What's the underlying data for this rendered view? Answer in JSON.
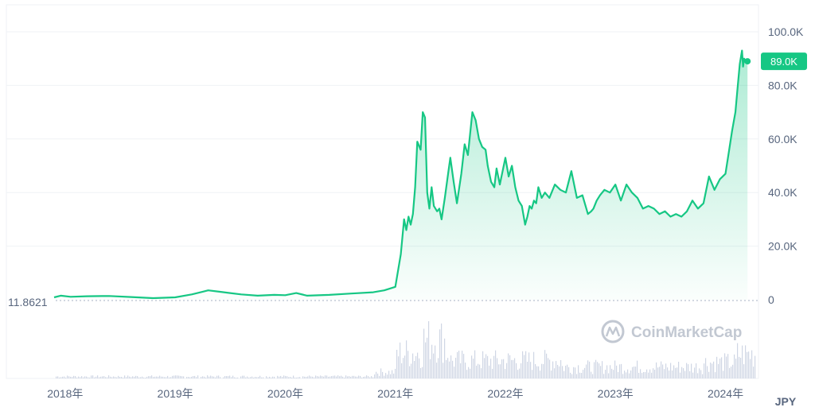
{
  "chart_data": {
    "type": "area",
    "currency": "JPY",
    "start_value_label": "11.8621",
    "current_value_label": "89.0K",
    "current_value": 89000,
    "watermark": "CoinMarketCap",
    "ylim": [
      0,
      100000
    ],
    "yticks": [
      {
        "value": 0,
        "label": "0"
      },
      {
        "value": 20000,
        "label": "20.0K"
      },
      {
        "value": 40000,
        "label": "40.0K"
      },
      {
        "value": 60000,
        "label": "60.0K"
      },
      {
        "value": 80000,
        "label": "80.0K"
      },
      {
        "value": 100000,
        "label": "100.0K"
      }
    ],
    "xlim": [
      2017.9,
      2024.3
    ],
    "xticks": [
      {
        "value": 2018.0,
        "label": "2018年"
      },
      {
        "value": 2019.0,
        "label": "2019年"
      },
      {
        "value": 2020.0,
        "label": "2020年"
      },
      {
        "value": 2021.0,
        "label": "2021年"
      },
      {
        "value": 2022.0,
        "label": "2022年"
      },
      {
        "value": 2023.0,
        "label": "2023年"
      },
      {
        "value": 2024.0,
        "label": "2024年"
      }
    ],
    "colors": {
      "line": "#16c784",
      "area_top": "#16c784",
      "volume": "#cfd6e4",
      "grid": "#eff2f5",
      "badge": "#16c784"
    },
    "series": [
      {
        "x": [
          2017.9,
          2017.96,
          2018.05,
          2018.2,
          2018.4,
          2018.6,
          2018.8,
          2019.0,
          2019.15,
          2019.3,
          2019.4,
          2019.5,
          2019.6,
          2019.75,
          2019.9,
          2020.0,
          2020.1,
          2020.2,
          2020.4,
          2020.6,
          2020.8,
          2020.9,
          2021.0,
          2021.05,
          2021.08,
          2021.1,
          2021.12,
          2021.14,
          2021.16,
          2021.18,
          2021.2,
          2021.23,
          2021.25,
          2021.27,
          2021.29,
          2021.31,
          2021.33,
          2021.35,
          2021.38,
          2021.4,
          2021.42,
          2021.45,
          2021.48,
          2021.5,
          2021.53,
          2021.56,
          2021.6,
          2021.63,
          2021.66,
          2021.7,
          2021.73,
          2021.76,
          2021.79,
          2021.82,
          2021.84,
          2021.87,
          2021.9,
          2021.92,
          2021.95,
          2021.97,
          2022.0,
          2022.03,
          2022.06,
          2022.09,
          2022.12,
          2022.15,
          2022.18,
          2022.2,
          2022.22,
          2022.24,
          2022.26,
          2022.28,
          2022.3,
          2022.33,
          2022.36,
          2022.4,
          2022.45,
          2022.5,
          2022.55,
          2022.6,
          2022.65,
          2022.7,
          2022.75,
          2022.78,
          2022.8,
          2022.83,
          2022.86,
          2022.9,
          2022.95,
          2023.0,
          2023.05,
          2023.1,
          2023.15,
          2023.2,
          2023.25,
          2023.3,
          2023.35,
          2023.4,
          2023.45,
          2023.5,
          2023.55,
          2023.6,
          2023.65,
          2023.7,
          2023.75,
          2023.8,
          2023.85,
          2023.9,
          2023.95,
          2024.0,
          2024.03,
          2024.06,
          2024.09,
          2024.11,
          2024.13,
          2024.15,
          2024.16,
          2024.17,
          2024.18,
          2024.19,
          2024.2
        ],
        "y": [
          900,
          1500,
          1100,
          1300,
          1400,
          1000,
          600,
          900,
          2000,
          3500,
          3000,
          2500,
          2000,
          1500,
          1800,
          1700,
          2500,
          1500,
          1800,
          2300,
          2800,
          3500,
          4800,
          17000,
          30000,
          26000,
          31000,
          28000,
          32000,
          42000,
          59000,
          56000,
          70000,
          68000,
          40000,
          34000,
          42000,
          35000,
          33000,
          34000,
          30000,
          38000,
          47000,
          53000,
          44000,
          36000,
          47000,
          58000,
          54000,
          70000,
          67000,
          60000,
          57000,
          56000,
          50000,
          44000,
          42000,
          49000,
          43000,
          47000,
          53000,
          46000,
          50000,
          42000,
          37000,
          35000,
          28000,
          31000,
          35000,
          34000,
          37000,
          36000,
          42000,
          38000,
          40000,
          38000,
          43000,
          41000,
          40000,
          48000,
          38000,
          39000,
          32000,
          33000,
          34000,
          37000,
          39000,
          41000,
          40000,
          43000,
          37000,
          43000,
          40000,
          38000,
          34000,
          35000,
          34000,
          32000,
          33000,
          31000,
          32000,
          31000,
          33000,
          37000,
          34000,
          36000,
          46000,
          41000,
          45000,
          47000,
          55000,
          63000,
          70000,
          79000,
          88000,
          93000,
          87000,
          90000,
          89000,
          89000,
          89000
        ]
      }
    ]
  }
}
